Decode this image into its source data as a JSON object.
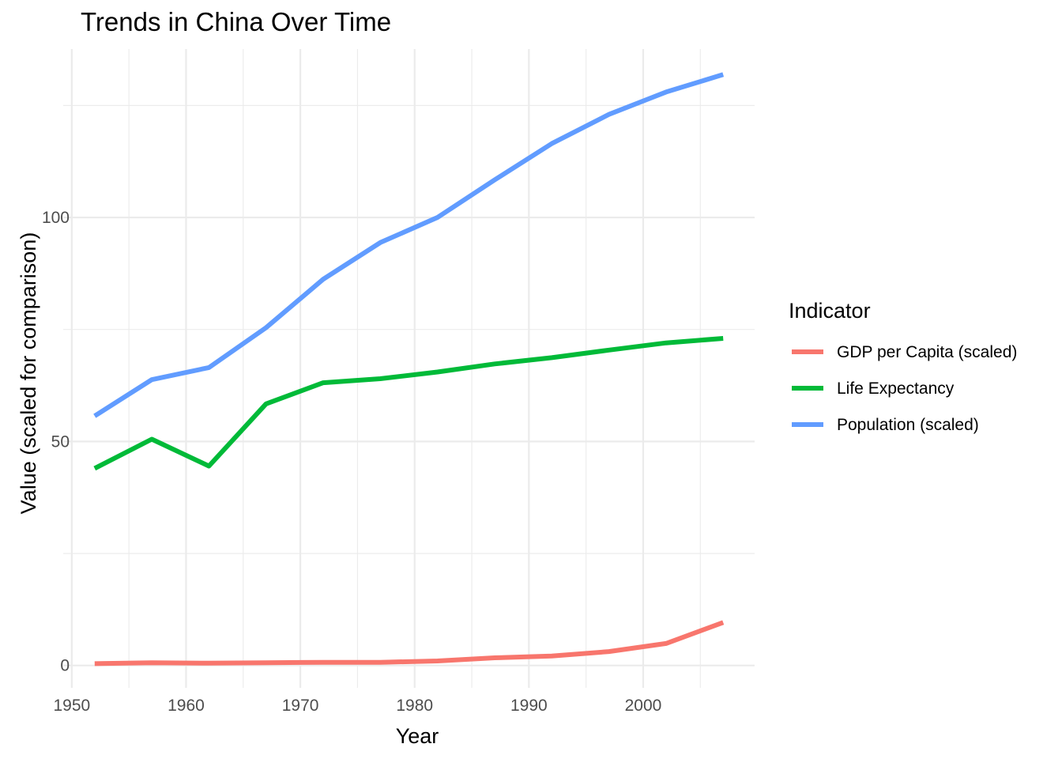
{
  "chart_data": {
    "type": "line",
    "title": "Trends in China Over Time",
    "xlabel": "Year",
    "ylabel": "Value (scaled for comparison)",
    "xlim": [
      1949.25,
      2009.75
    ],
    "ylim": [
      -5,
      137.6
    ],
    "x_ticks": [
      1950,
      1960,
      1970,
      1980,
      1990,
      2000
    ],
    "y_ticks": [
      0,
      50,
      100
    ],
    "x": [
      1952,
      1957,
      1962,
      1967,
      1972,
      1977,
      1982,
      1987,
      1992,
      1997,
      2002,
      2007
    ],
    "grid": true,
    "legend": {
      "title": "Indicator",
      "position": "right"
    },
    "series": [
      {
        "name": "GDP per Capita (scaled)",
        "color": "#F8766D",
        "values": [
          0.4,
          0.6,
          0.5,
          0.6,
          0.7,
          0.7,
          1.0,
          1.7,
          2.1,
          3.1,
          4.9,
          9.6
        ]
      },
      {
        "name": "Life Expectancy",
        "color": "#00BA38",
        "values": [
          44.0,
          50.5,
          44.5,
          58.4,
          63.1,
          64.0,
          65.5,
          67.3,
          68.7,
          70.4,
          72.0,
          73.0
        ]
      },
      {
        "name": "Population (scaled)",
        "color": "#619CFF",
        "values": [
          55.7,
          63.8,
          66.5,
          75.4,
          86.2,
          94.4,
          100.0,
          108.4,
          116.5,
          123.0,
          128.0,
          131.9
        ]
      }
    ]
  }
}
